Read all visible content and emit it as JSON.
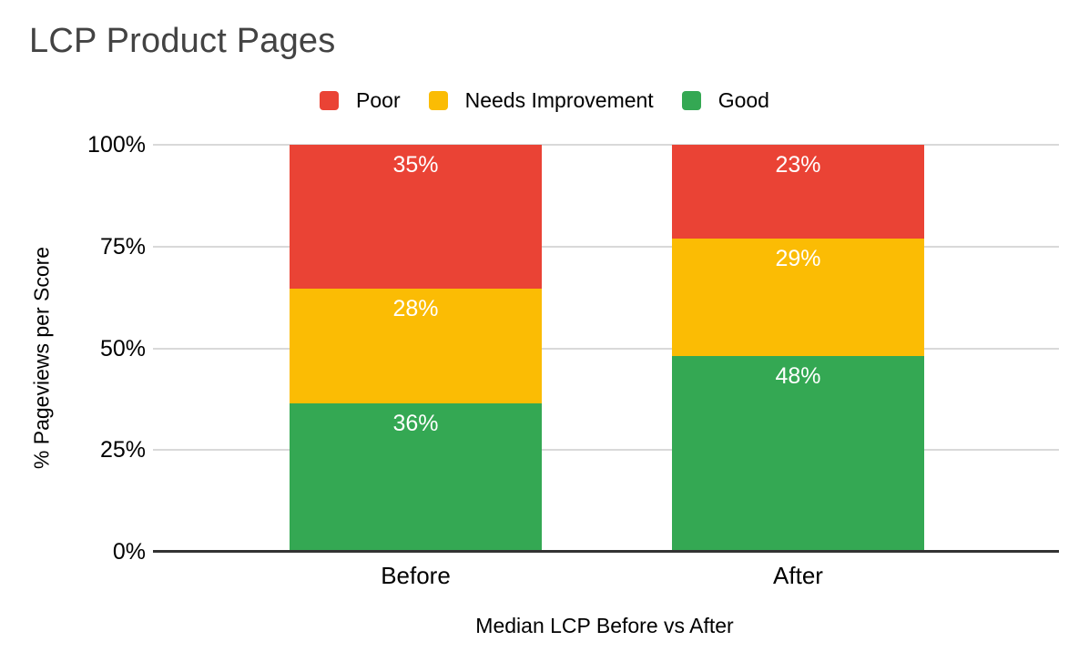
{
  "page": {
    "background": "#ffffff"
  },
  "chart_data": {
    "type": "bar",
    "variant": "stacked-100-percent",
    "title": "LCP Product Pages",
    "xlabel": "Median LCP Before vs After",
    "ylabel": "% Pageviews per Score",
    "categories": [
      "Before",
      "After"
    ],
    "series": [
      {
        "name": "Poor",
        "color": "#ea4335",
        "values": [
          35,
          23
        ]
      },
      {
        "name": "Needs Improvement",
        "color": "#fbbc04",
        "values": [
          28,
          29
        ]
      },
      {
        "name": "Good",
        "color": "#34a853",
        "values": [
          36,
          48
        ]
      }
    ],
    "stack_order_top_to_bottom": [
      "Poor",
      "Needs Improvement",
      "Good"
    ],
    "data_label_format": "{value}%",
    "data_label_color": "#ffffff",
    "y_ticks": [
      {
        "label": "0%",
        "value": 0
      },
      {
        "label": "25%",
        "value": 25
      },
      {
        "label": "50%",
        "value": 50
      },
      {
        "label": "75%",
        "value": 75
      },
      {
        "label": "100%",
        "value": 100
      }
    ],
    "ylim": [
      0,
      100
    ],
    "grid": true,
    "legend_position": "top",
    "colors": {
      "grid": "#d9d9d9",
      "axis_line": "#333333",
      "title_text": "#434343",
      "tick_label": "#000000"
    }
  }
}
